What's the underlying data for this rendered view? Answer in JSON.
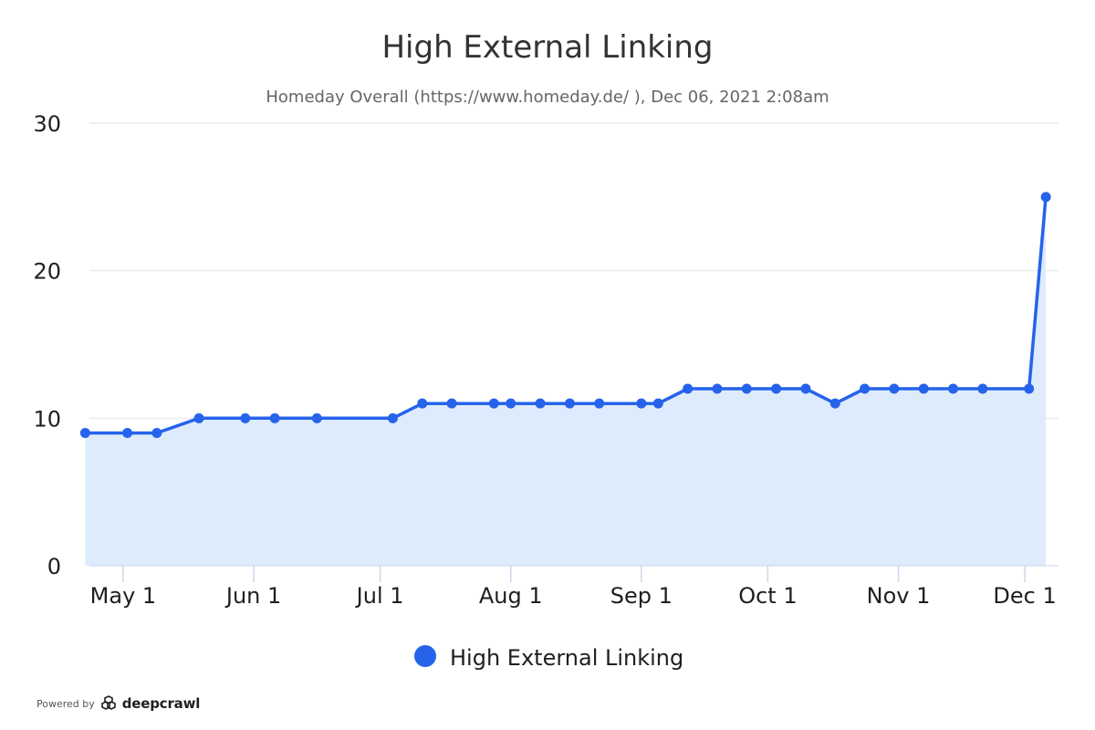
{
  "chart_data": {
    "type": "area",
    "title": "High External Linking",
    "subtitle": "Homeday Overall (https://www.homeday.de/ ), Dec 06, 2021 2:08am",
    "xlabel": "",
    "ylabel": "",
    "ylim": [
      0,
      30
    ],
    "yticks": [
      0,
      10,
      20,
      30
    ],
    "xlim": [
      "2021-04-23",
      "2021-12-09"
    ],
    "xticks": [
      {
        "label": "May 1",
        "date": "2021-05-01"
      },
      {
        "label": "Jun 1",
        "date": "2021-06-01"
      },
      {
        "label": "Jul 1",
        "date": "2021-07-01"
      },
      {
        "label": "Aug 1",
        "date": "2021-08-01"
      },
      {
        "label": "Sep 1",
        "date": "2021-09-01"
      },
      {
        "label": "Oct 1",
        "date": "2021-10-01"
      },
      {
        "label": "Nov 1",
        "date": "2021-11-01"
      },
      {
        "label": "Dec 1",
        "date": "2021-12-01"
      }
    ],
    "grid": true,
    "legend": "bottom-center",
    "series": [
      {
        "name": "High External Linking",
        "color": "#2563eb",
        "fill": "#deebfc",
        "points": [
          {
            "x": "2021-04-22",
            "y": 9
          },
          {
            "x": "2021-05-02",
            "y": 9
          },
          {
            "x": "2021-05-09",
            "y": 9
          },
          {
            "x": "2021-05-19",
            "y": 10
          },
          {
            "x": "2021-05-30",
            "y": 10
          },
          {
            "x": "2021-06-06",
            "y": 10
          },
          {
            "x": "2021-06-16",
            "y": 10
          },
          {
            "x": "2021-07-04",
            "y": 10
          },
          {
            "x": "2021-07-11",
            "y": 11
          },
          {
            "x": "2021-07-18",
            "y": 11
          },
          {
            "x": "2021-07-28",
            "y": 11
          },
          {
            "x": "2021-08-01",
            "y": 11
          },
          {
            "x": "2021-08-08",
            "y": 11
          },
          {
            "x": "2021-08-15",
            "y": 11
          },
          {
            "x": "2021-08-22",
            "y": 11
          },
          {
            "x": "2021-09-01",
            "y": 11
          },
          {
            "x": "2021-09-05",
            "y": 11
          },
          {
            "x": "2021-09-12",
            "y": 12
          },
          {
            "x": "2021-09-19",
            "y": 12
          },
          {
            "x": "2021-09-26",
            "y": 12
          },
          {
            "x": "2021-10-03",
            "y": 12
          },
          {
            "x": "2021-10-10",
            "y": 12
          },
          {
            "x": "2021-10-17",
            "y": 11
          },
          {
            "x": "2021-10-24",
            "y": 12
          },
          {
            "x": "2021-10-31",
            "y": 12
          },
          {
            "x": "2021-11-07",
            "y": 12
          },
          {
            "x": "2021-11-14",
            "y": 12
          },
          {
            "x": "2021-11-21",
            "y": 12
          },
          {
            "x": "2021-12-02",
            "y": 12
          },
          {
            "x": "2021-12-06",
            "y": 25
          }
        ]
      }
    ]
  },
  "footer": {
    "powered_by": "Powered by",
    "brand": "deepcrawl"
  }
}
